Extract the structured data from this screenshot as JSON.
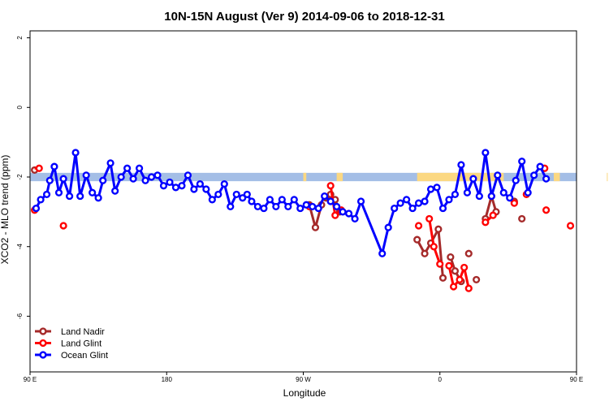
{
  "chart_data": {
    "type": "line",
    "title": "10N-15N August (Ver 9)   2014-09-06 to 2018-12-31",
    "xlabel": "Longitude",
    "ylabel": "XCO2 - MLO trend (ppm)",
    "xlim": [
      90,
      450
    ],
    "ylim": [
      -7.6,
      2.2
    ],
    "x_ticks": [
      {
        "value": 90,
        "label": "90 E"
      },
      {
        "value": 180,
        "label": "180"
      },
      {
        "value": 270,
        "label": "90 W"
      },
      {
        "value": 360,
        "label": "0"
      },
      {
        "value": 450,
        "label": "90 E"
      },
      {
        "value": 540,
        "label": "180"
      }
    ],
    "y_ticks": [
      {
        "value": 2,
        "label": "2"
      },
      {
        "value": 0,
        "label": "0"
      },
      {
        "value": -2,
        "label": "-2"
      },
      {
        "value": -4,
        "label": "-4"
      },
      {
        "value": -6,
        "label": "-6"
      }
    ],
    "land_mask": {
      "y_range": [
        -2.12,
        -1.88
      ],
      "ocean_color": "#a4bee6",
      "land_color": "#fbd882",
      "land_segments": [
        [
          270,
          272
        ],
        [
          292,
          296
        ],
        [
          345,
          402
        ],
        [
          435,
          439
        ],
        [
          470,
          475
        ],
        [
          481,
          483
        ]
      ]
    },
    "legend_position": "bottom-left",
    "series": [
      {
        "name": "Land Nadir",
        "color": "#a52a2a",
        "points": [
          [
            93,
            -1.8
          ],
          [
            274,
            -2.8
          ],
          [
            278,
            -3.45
          ],
          [
            282,
            -2.8
          ],
          [
            285,
            -2.6
          ],
          [
            288,
            -2.5
          ],
          [
            291,
            -2.65
          ],
          [
            294,
            -3.0
          ],
          [
            345,
            -3.8
          ],
          [
            350,
            -4.2
          ],
          [
            354,
            -3.9
          ],
          [
            359,
            -3.5
          ],
          [
            362,
            -4.9
          ],
          [
            367,
            -4.3
          ],
          [
            370,
            -4.7
          ],
          [
            374,
            -5.0
          ],
          [
            379,
            -4.2
          ],
          [
            384,
            -4.95
          ],
          [
            390,
            -3.2
          ],
          [
            394,
            -2.55
          ],
          [
            397,
            -3.0
          ],
          [
            409,
            -2.7
          ],
          [
            414,
            -3.2
          ]
        ],
        "segments": [
          [
            [
              274,
              -2.8
            ],
            [
              278,
              -3.45
            ],
            [
              282,
              -2.8
            ]
          ],
          [
            [
              288,
              -2.5
            ],
            [
              291,
              -2.65
            ],
            [
              294,
              -3.0
            ]
          ],
          [
            [
              345,
              -3.8
            ],
            [
              350,
              -4.2
            ],
            [
              354,
              -3.9
            ],
            [
              359,
              -3.5
            ],
            [
              362,
              -4.9
            ]
          ],
          [
            [
              367,
              -4.3
            ],
            [
              370,
              -4.7
            ],
            [
              374,
              -5.0
            ]
          ],
          [
            [
              390,
              -3.2
            ],
            [
              394,
              -2.55
            ],
            [
              397,
              -3.0
            ]
          ]
        ]
      },
      {
        "name": "Land Glint",
        "color": "#ff0000",
        "points": [
          [
            93,
            -2.95
          ],
          [
            96,
            -1.75
          ],
          [
            112,
            -3.4
          ],
          [
            274,
            -2.85
          ],
          [
            288,
            -2.25
          ],
          [
            291,
            -3.1
          ],
          [
            295,
            -2.95
          ],
          [
            346,
            -3.4
          ],
          [
            353,
            -3.2
          ],
          [
            356,
            -4.0
          ],
          [
            360,
            -4.5
          ],
          [
            366,
            -4.55
          ],
          [
            369,
            -5.15
          ],
          [
            373,
            -4.95
          ],
          [
            376,
            -4.6
          ],
          [
            379,
            -5.2
          ],
          [
            390,
            -3.3
          ],
          [
            395,
            -3.1
          ],
          [
            409,
            -2.75
          ],
          [
            417,
            -2.5
          ],
          [
            429,
            -1.75
          ],
          [
            430,
            -2.95
          ],
          [
            446,
            -3.4
          ]
        ],
        "segments": [
          [
            [
              93,
              -1.75
            ],
            [
              96,
              -1.75
            ]
          ],
          [
            [
              288,
              -2.25
            ],
            [
              291,
              -3.1
            ],
            [
              295,
              -2.95
            ]
          ],
          [
            [
              353,
              -3.2
            ],
            [
              356,
              -4.0
            ],
            [
              360,
              -4.5
            ]
          ],
          [
            [
              366,
              -4.55
            ],
            [
              369,
              -5.15
            ],
            [
              373,
              -4.95
            ],
            [
              376,
              -4.6
            ],
            [
              379,
              -5.2
            ]
          ],
          [
            [
              390,
              -3.3
            ],
            [
              395,
              -3.1
            ]
          ]
        ]
      },
      {
        "name": "Ocean Glint",
        "color": "#0000ff",
        "points": [
          [
            94,
            -2.9
          ],
          [
            97,
            -2.65
          ],
          [
            101,
            -2.5
          ],
          [
            103,
            -2.1
          ],
          [
            106,
            -1.7
          ],
          [
            109,
            -2.45
          ],
          [
            112,
            -2.05
          ],
          [
            116,
            -2.55
          ],
          [
            120,
            -1.3
          ],
          [
            123,
            -2.55
          ],
          [
            127,
            -1.95
          ],
          [
            131,
            -2.45
          ],
          [
            135,
            -2.6
          ],
          [
            138,
            -2.1
          ],
          [
            143,
            -1.6
          ],
          [
            146,
            -2.4
          ],
          [
            150,
            -2.0
          ],
          [
            154,
            -1.75
          ],
          [
            158,
            -2.05
          ],
          [
            162,
            -1.75
          ],
          [
            166,
            -2.1
          ],
          [
            170,
            -2.0
          ],
          [
            174,
            -1.95
          ],
          [
            178,
            -2.25
          ],
          [
            182,
            -2.15
          ],
          [
            186,
            -2.3
          ],
          [
            190,
            -2.25
          ],
          [
            194,
            -1.95
          ],
          [
            198,
            -2.35
          ],
          [
            202,
            -2.2
          ],
          [
            206,
            -2.35
          ],
          [
            210,
            -2.65
          ],
          [
            214,
            -2.5
          ],
          [
            218,
            -2.2
          ],
          [
            222,
            -2.85
          ],
          [
            226,
            -2.5
          ],
          [
            230,
            -2.6
          ],
          [
            233,
            -2.5
          ],
          [
            236,
            -2.7
          ],
          [
            240,
            -2.85
          ],
          [
            244,
            -2.9
          ],
          [
            248,
            -2.65
          ],
          [
            252,
            -2.85
          ],
          [
            256,
            -2.65
          ],
          [
            260,
            -2.85
          ],
          [
            264,
            -2.65
          ],
          [
            268,
            -2.9
          ],
          [
            272,
            -2.8
          ],
          [
            276,
            -2.85
          ],
          [
            280,
            -2.9
          ],
          [
            284,
            -2.55
          ],
          [
            288,
            -2.7
          ],
          [
            292,
            -2.85
          ],
          [
            296,
            -3.0
          ],
          [
            300,
            -3.05
          ],
          [
            304,
            -3.2
          ],
          [
            308,
            -2.7
          ],
          [
            322,
            -4.2
          ],
          [
            326,
            -3.45
          ],
          [
            330,
            -2.9
          ],
          [
            334,
            -2.75
          ],
          [
            338,
            -2.65
          ],
          [
            342,
            -2.9
          ],
          [
            346,
            -2.75
          ],
          [
            350,
            -2.7
          ],
          [
            354,
            -2.35
          ],
          [
            358,
            -2.3
          ],
          [
            362,
            -2.9
          ],
          [
            366,
            -2.65
          ],
          [
            370,
            -2.5
          ],
          [
            374,
            -1.65
          ],
          [
            378,
            -2.45
          ],
          [
            382,
            -2.05
          ],
          [
            386,
            -2.55
          ],
          [
            390,
            -1.3
          ],
          [
            394,
            -2.55
          ],
          [
            398,
            -1.95
          ],
          [
            402,
            -2.45
          ],
          [
            406,
            -2.6
          ],
          [
            410,
            -2.1
          ],
          [
            414,
            -1.55
          ],
          [
            418,
            -2.45
          ],
          [
            422,
            -1.95
          ],
          [
            426,
            -1.7
          ],
          [
            430,
            -2.05
          ]
        ]
      }
    ]
  }
}
